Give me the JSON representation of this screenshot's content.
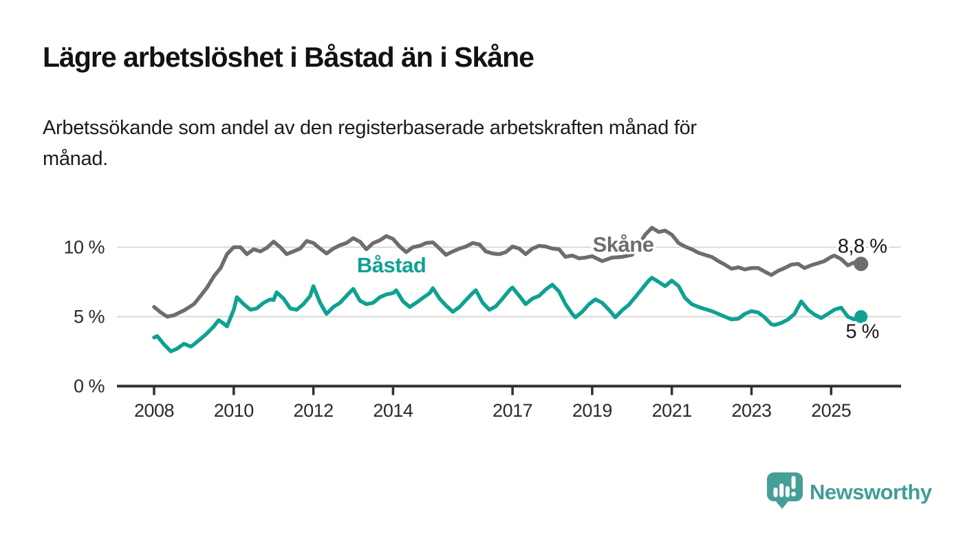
{
  "title": "Lägre arbetslöshet i Båstad än i Skåne",
  "subtitle": "Arbetssökande som andel av den registerbaserade arbetskraften månad för månad.",
  "brand": {
    "name": "Newsworthy",
    "logo_icon": "newsworthy-speech-bubble-bar-chart-icon",
    "color": "#459e98"
  },
  "chart_data": {
    "type": "line",
    "title": "Lägre arbetslöshet i Båstad än i Skåne",
    "subtitle": "Arbetssökande som andel av den registerbaserade arbetskraften månad för månad.",
    "unit": "%",
    "grid": "horizontal",
    "legend_position": "inline-labels",
    "x_axis": {
      "ticks": [
        {
          "year": 2008,
          "label": "2008"
        },
        {
          "year": 2010,
          "label": "2010"
        },
        {
          "year": 2012,
          "label": "2012"
        },
        {
          "year": 2014,
          "label": "2014"
        },
        {
          "year": 2017,
          "label": "2017"
        },
        {
          "year": 2019,
          "label": "2019"
        },
        {
          "year": 2021,
          "label": "2021"
        },
        {
          "year": 2023,
          "label": "2023"
        },
        {
          "year": 2025,
          "label": "2025"
        }
      ],
      "range": [
        2007.9,
        2026.7
      ]
    },
    "y_axis": {
      "ticks": [
        {
          "value": 0,
          "label": "0 %"
        },
        {
          "value": 5,
          "label": "5 %"
        },
        {
          "value": 10,
          "label": "10 %"
        }
      ],
      "range": [
        0,
        12.4
      ],
      "gridline_values": [
        5,
        10
      ]
    },
    "colors": {
      "grid": "#d9d9d9",
      "axis": "#303034"
    },
    "series": [
      {
        "name": "Skåne",
        "color": "#6d6d71",
        "end_value": 8.8,
        "end_label": "8,8 %",
        "end_label_position": "above",
        "label_anchor": {
          "year": 2019.78,
          "value": 9.68
        },
        "points": [
          [
            2008.0,
            5.7
          ],
          [
            2008.17,
            5.3
          ],
          [
            2008.33,
            5.0
          ],
          [
            2008.5,
            5.1
          ],
          [
            2008.75,
            5.45
          ],
          [
            2009.0,
            5.9
          ],
          [
            2009.17,
            6.5
          ],
          [
            2009.33,
            7.1
          ],
          [
            2009.5,
            7.9
          ],
          [
            2009.67,
            8.5
          ],
          [
            2009.83,
            9.5
          ],
          [
            2010.0,
            10.0
          ],
          [
            2010.17,
            10.0
          ],
          [
            2010.33,
            9.5
          ],
          [
            2010.5,
            9.85
          ],
          [
            2010.67,
            9.7
          ],
          [
            2010.83,
            9.95
          ],
          [
            2011.0,
            10.4
          ],
          [
            2011.17,
            10.0
          ],
          [
            2011.33,
            9.5
          ],
          [
            2011.5,
            9.7
          ],
          [
            2011.67,
            9.9
          ],
          [
            2011.83,
            10.45
          ],
          [
            2012.0,
            10.3
          ],
          [
            2012.17,
            9.9
          ],
          [
            2012.33,
            9.55
          ],
          [
            2012.5,
            9.9
          ],
          [
            2012.67,
            10.15
          ],
          [
            2012.83,
            10.3
          ],
          [
            2013.0,
            10.65
          ],
          [
            2013.17,
            10.4
          ],
          [
            2013.33,
            9.85
          ],
          [
            2013.5,
            10.3
          ],
          [
            2013.67,
            10.5
          ],
          [
            2013.83,
            10.8
          ],
          [
            2014.0,
            10.6
          ],
          [
            2014.17,
            10.05
          ],
          [
            2014.33,
            9.65
          ],
          [
            2014.5,
            10.0
          ],
          [
            2014.67,
            10.1
          ],
          [
            2014.83,
            10.3
          ],
          [
            2015.0,
            10.35
          ],
          [
            2015.17,
            9.9
          ],
          [
            2015.33,
            9.45
          ],
          [
            2015.5,
            9.7
          ],
          [
            2015.67,
            9.9
          ],
          [
            2015.83,
            10.05
          ],
          [
            2016.0,
            10.3
          ],
          [
            2016.17,
            10.2
          ],
          [
            2016.33,
            9.7
          ],
          [
            2016.5,
            9.55
          ],
          [
            2016.67,
            9.5
          ],
          [
            2016.83,
            9.65
          ],
          [
            2017.0,
            10.05
          ],
          [
            2017.17,
            9.9
          ],
          [
            2017.33,
            9.5
          ],
          [
            2017.5,
            9.9
          ],
          [
            2017.67,
            10.1
          ],
          [
            2017.83,
            10.05
          ],
          [
            2018.0,
            9.9
          ],
          [
            2018.17,
            9.85
          ],
          [
            2018.33,
            9.3
          ],
          [
            2018.5,
            9.4
          ],
          [
            2018.67,
            9.2
          ],
          [
            2018.83,
            9.25
          ],
          [
            2019.0,
            9.35
          ],
          [
            2019.25,
            9.0
          ],
          [
            2019.5,
            9.25
          ],
          [
            2019.75,
            9.3
          ],
          [
            2020.0,
            9.45
          ],
          [
            2020.17,
            10.1
          ],
          [
            2020.33,
            10.9
          ],
          [
            2020.5,
            11.4
          ],
          [
            2020.67,
            11.1
          ],
          [
            2020.83,
            11.2
          ],
          [
            2021.0,
            10.9
          ],
          [
            2021.17,
            10.3
          ],
          [
            2021.33,
            10.05
          ],
          [
            2021.5,
            9.85
          ],
          [
            2021.67,
            9.6
          ],
          [
            2021.83,
            9.45
          ],
          [
            2022.0,
            9.3
          ],
          [
            2022.17,
            9.0
          ],
          [
            2022.33,
            8.75
          ],
          [
            2022.5,
            8.45
          ],
          [
            2022.67,
            8.55
          ],
          [
            2022.83,
            8.4
          ],
          [
            2023.0,
            8.5
          ],
          [
            2023.17,
            8.5
          ],
          [
            2023.33,
            8.25
          ],
          [
            2023.5,
            8.0
          ],
          [
            2023.67,
            8.3
          ],
          [
            2023.83,
            8.5
          ],
          [
            2024.0,
            8.75
          ],
          [
            2024.17,
            8.8
          ],
          [
            2024.33,
            8.5
          ],
          [
            2024.5,
            8.7
          ],
          [
            2024.67,
            8.85
          ],
          [
            2024.83,
            9.0
          ],
          [
            2025.0,
            9.3
          ],
          [
            2025.08,
            9.4
          ],
          [
            2025.25,
            9.15
          ],
          [
            2025.42,
            8.7
          ],
          [
            2025.58,
            8.9
          ],
          [
            2025.75,
            8.8
          ]
        ]
      },
      {
        "name": "Båstad",
        "color": "#0fa192",
        "end_value": 5.0,
        "end_label": "5 %",
        "end_label_position": "below",
        "label_anchor": {
          "year": 2013.96,
          "value": 8.19
        },
        "points": [
          [
            2008.0,
            3.5
          ],
          [
            2008.08,
            3.6
          ],
          [
            2008.25,
            3.0
          ],
          [
            2008.42,
            2.5
          ],
          [
            2008.58,
            2.7
          ],
          [
            2008.75,
            3.05
          ],
          [
            2008.92,
            2.85
          ],
          [
            2009.0,
            3.0
          ],
          [
            2009.17,
            3.4
          ],
          [
            2009.33,
            3.8
          ],
          [
            2009.5,
            4.3
          ],
          [
            2009.62,
            4.75
          ],
          [
            2009.75,
            4.5
          ],
          [
            2009.83,
            4.3
          ],
          [
            2010.0,
            5.5
          ],
          [
            2010.08,
            6.4
          ],
          [
            2010.25,
            5.9
          ],
          [
            2010.42,
            5.5
          ],
          [
            2010.58,
            5.6
          ],
          [
            2010.75,
            6.0
          ],
          [
            2010.92,
            6.25
          ],
          [
            2011.0,
            6.2
          ],
          [
            2011.08,
            6.75
          ],
          [
            2011.25,
            6.3
          ],
          [
            2011.42,
            5.6
          ],
          [
            2011.58,
            5.5
          ],
          [
            2011.75,
            5.9
          ],
          [
            2011.92,
            6.5
          ],
          [
            2012.0,
            7.2
          ],
          [
            2012.17,
            6.0
          ],
          [
            2012.33,
            5.2
          ],
          [
            2012.5,
            5.7
          ],
          [
            2012.67,
            6.0
          ],
          [
            2012.83,
            6.5
          ],
          [
            2013.0,
            7.0
          ],
          [
            2013.17,
            6.15
          ],
          [
            2013.33,
            5.9
          ],
          [
            2013.5,
            6.0
          ],
          [
            2013.67,
            6.4
          ],
          [
            2013.83,
            6.6
          ],
          [
            2014.0,
            6.7
          ],
          [
            2014.08,
            6.9
          ],
          [
            2014.25,
            6.1
          ],
          [
            2014.42,
            5.7
          ],
          [
            2014.58,
            6.0
          ],
          [
            2014.75,
            6.35
          ],
          [
            2014.92,
            6.7
          ],
          [
            2015.0,
            7.05
          ],
          [
            2015.17,
            6.3
          ],
          [
            2015.33,
            5.8
          ],
          [
            2015.5,
            5.35
          ],
          [
            2015.67,
            5.7
          ],
          [
            2015.83,
            6.2
          ],
          [
            2016.0,
            6.7
          ],
          [
            2016.08,
            6.9
          ],
          [
            2016.25,
            6.0
          ],
          [
            2016.42,
            5.5
          ],
          [
            2016.58,
            5.75
          ],
          [
            2016.75,
            6.3
          ],
          [
            2016.92,
            6.9
          ],
          [
            2017.0,
            7.1
          ],
          [
            2017.17,
            6.5
          ],
          [
            2017.33,
            5.9
          ],
          [
            2017.5,
            6.3
          ],
          [
            2017.67,
            6.5
          ],
          [
            2017.83,
            6.95
          ],
          [
            2018.0,
            7.3
          ],
          [
            2018.17,
            6.8
          ],
          [
            2018.33,
            5.9
          ],
          [
            2018.5,
            5.2
          ],
          [
            2018.58,
            4.95
          ],
          [
            2018.75,
            5.35
          ],
          [
            2018.92,
            5.9
          ],
          [
            2019.08,
            6.25
          ],
          [
            2019.25,
            6.0
          ],
          [
            2019.42,
            5.5
          ],
          [
            2019.58,
            4.95
          ],
          [
            2019.75,
            5.45
          ],
          [
            2019.92,
            5.85
          ],
          [
            2020.08,
            6.4
          ],
          [
            2020.25,
            7.0
          ],
          [
            2020.42,
            7.6
          ],
          [
            2020.5,
            7.8
          ],
          [
            2020.67,
            7.5
          ],
          [
            2020.83,
            7.2
          ],
          [
            2021.0,
            7.6
          ],
          [
            2021.17,
            7.2
          ],
          [
            2021.33,
            6.35
          ],
          [
            2021.5,
            5.9
          ],
          [
            2021.67,
            5.7
          ],
          [
            2021.83,
            5.55
          ],
          [
            2022.0,
            5.4
          ],
          [
            2022.17,
            5.2
          ],
          [
            2022.33,
            5.0
          ],
          [
            2022.5,
            4.8
          ],
          [
            2022.67,
            4.85
          ],
          [
            2022.83,
            5.2
          ],
          [
            2023.0,
            5.4
          ],
          [
            2023.17,
            5.3
          ],
          [
            2023.33,
            4.95
          ],
          [
            2023.5,
            4.45
          ],
          [
            2023.58,
            4.4
          ],
          [
            2023.75,
            4.55
          ],
          [
            2023.92,
            4.8
          ],
          [
            2024.08,
            5.2
          ],
          [
            2024.25,
            6.1
          ],
          [
            2024.42,
            5.5
          ],
          [
            2024.58,
            5.15
          ],
          [
            2024.75,
            4.9
          ],
          [
            2024.92,
            5.2
          ],
          [
            2025.08,
            5.5
          ],
          [
            2025.25,
            5.65
          ],
          [
            2025.42,
            5.0
          ],
          [
            2025.58,
            4.8
          ],
          [
            2025.75,
            5.0
          ]
        ]
      }
    ]
  }
}
